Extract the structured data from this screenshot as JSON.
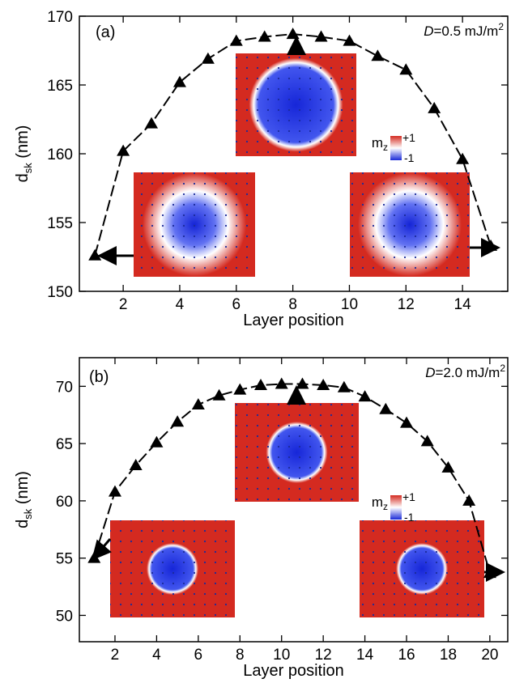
{
  "chart_data": [
    {
      "type": "line",
      "label": "(a)",
      "annotation": [
        "D",
        "=0.5 mJ/m",
        "2"
      ],
      "colorbar": {
        "name": [
          "m",
          "z"
        ],
        "max": "+1",
        "min": "-1"
      },
      "x": [
        1,
        2,
        3,
        4,
        5,
        6,
        7,
        8,
        9,
        10,
        11,
        12,
        13,
        14,
        15
      ],
      "values": [
        152.6,
        160.2,
        162.2,
        165.2,
        166.9,
        168.2,
        168.5,
        168.7,
        168.5,
        168.2,
        167.1,
        166.1,
        163.3,
        159.6,
        153.3
      ],
      "color": "#000000",
      "marker": "triangle",
      "xlim": [
        0.45,
        15.6
      ],
      "ylim": [
        150,
        170
      ],
      "xticks": [
        2,
        4,
        6,
        8,
        10,
        12,
        14
      ],
      "yticks": [
        150,
        155,
        160,
        165,
        170
      ],
      "xlabel": "Layer position",
      "ylabel": [
        "d",
        "sk",
        " (nm)"
      ]
    },
    {
      "type": "line",
      "label": "(b)",
      "annotation": [
        "D",
        "=2.0 mJ/m",
        "2"
      ],
      "colorbar": {
        "name": [
          "m",
          "z"
        ],
        "max": "+1",
        "min": "-1"
      },
      "x": [
        1,
        2,
        3,
        4,
        5,
        6,
        7,
        8,
        9,
        10,
        11,
        12,
        13,
        14,
        15,
        16,
        17,
        18,
        19,
        20
      ],
      "values": [
        55.0,
        60.8,
        63.1,
        65.1,
        66.9,
        68.4,
        69.2,
        69.7,
        70.1,
        70.2,
        70.2,
        70.1,
        69.9,
        69.1,
        68.0,
        66.8,
        65.2,
        62.9,
        60.0,
        53.7
      ],
      "color": "#000000",
      "marker": "triangle",
      "xlim": [
        0.29,
        20.86
      ],
      "ylim": [
        47.7,
        72.5
      ],
      "xticks": [
        2,
        4,
        6,
        8,
        10,
        12,
        14,
        16,
        18,
        20
      ],
      "yticks": [
        50,
        55,
        60,
        65,
        70
      ],
      "xlabel": "Layer position",
      "ylabel": [
        "d",
        "sk",
        " (nm)"
      ]
    }
  ]
}
